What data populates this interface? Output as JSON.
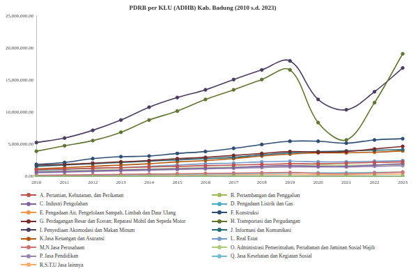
{
  "chart_data": {
    "type": "line",
    "title": "PDRB per KLU (ADHB) Kab. Badung (2010 s.d. 2023)",
    "categories": [
      "2010",
      "2011",
      "2012",
      "2013",
      "2014",
      "2015",
      "2016",
      "2017",
      "2018",
      "2019",
      "2020",
      "2021",
      "2022",
      "2023"
    ],
    "ylim": [
      0,
      25000000
    ],
    "yticks": [
      {
        "value": 0,
        "label": "0.00"
      },
      {
        "value": 5000000,
        "label": "5,000,000.00"
      },
      {
        "value": 10000000,
        "label": "10,000,000.00"
      },
      {
        "value": 15000000,
        "label": "15,000,000.00"
      },
      {
        "value": 20000000,
        "label": "20,000,000.00"
      },
      {
        "value": 25000000,
        "label": "25,000,000.00"
      }
    ],
    "grid": false,
    "legend": "bottom",
    "marker": "circle",
    "series": [
      {
        "name": "A. Pertanian, Kehutanan, dan Perikanan",
        "color": "#c0504d",
        "values": [
          1100000,
          1200000,
          1300000,
          1400000,
          1500000,
          1600000,
          1700000,
          1800000,
          1900000,
          2000000,
          2000000,
          2100000,
          2200000,
          2300000
        ]
      },
      {
        "name": "B. Pertambangan dan Penggalian",
        "color": "#9bbb59",
        "values": [
          10000,
          11000,
          12000,
          13000,
          14000,
          15000,
          16000,
          17000,
          18000,
          19000,
          17000,
          16000,
          18000,
          20000
        ]
      },
      {
        "name": "C. Industri Pengolahan",
        "color": "#8064a2",
        "values": [
          700000,
          800000,
          900000,
          1000000,
          1100000,
          1200000,
          1300000,
          1400000,
          1600000,
          1700000,
          1600000,
          1600000,
          1800000,
          2000000
        ]
      },
      {
        "name": "D. Pengadaan Listrik dan Gas",
        "color": "#4bacc6",
        "values": [
          30000,
          33000,
          36000,
          39000,
          42000,
          45000,
          48000,
          51000,
          54000,
          57000,
          50000,
          48000,
          52000,
          60000
        ]
      },
      {
        "name": "E. Pengadaan Air, Pengelolaan Sampah, Limbah dan Daur Ulang",
        "color": "#f79646",
        "values": [
          20000,
          22000,
          24000,
          26000,
          28000,
          30000,
          32000,
          34000,
          36000,
          38000,
          37000,
          37000,
          39000,
          40000
        ]
      },
      {
        "name": "F. Konstruksi",
        "color": "#2c4d75",
        "values": [
          1900000,
          2200000,
          2800000,
          3100000,
          3200000,
          3600000,
          3900000,
          4400000,
          5000000,
          5500000,
          5500000,
          5200000,
          5700000,
          5900000
        ]
      },
      {
        "name": "G. Perdagangan Besar dan Eceran; Reparasi Mobil dan Sepeda Motor",
        "color": "#772c2a",
        "values": [
          1800000,
          1900000,
          2100000,
          2300000,
          2500000,
          2800000,
          3000000,
          3300000,
          3600000,
          3900000,
          3800000,
          3900000,
          4300000,
          4700000
        ]
      },
      {
        "name": "H. Transportasi dan Pergudangan",
        "color": "#5f7530",
        "values": [
          3950000,
          4800000,
          5600000,
          6900000,
          8800000,
          10200000,
          12000000,
          13500000,
          15100000,
          16600000,
          8400000,
          5700000,
          11500000,
          19100000
        ]
      },
      {
        "name": "I. Penyediaan Akomodasi dan Makan Minum",
        "color": "#4d3b62",
        "values": [
          5300000,
          6000000,
          7200000,
          8800000,
          10800000,
          12300000,
          13500000,
          15100000,
          16600000,
          18000000,
          12000000,
          10400000,
          13200000,
          16900000
        ]
      },
      {
        "name": "J. Informasi dan Komunikasi",
        "color": "#276a7c",
        "values": [
          1600000,
          1800000,
          2000000,
          2200000,
          2400000,
          2600000,
          2800000,
          3000000,
          3400000,
          3700000,
          3900000,
          4000000,
          4100000,
          4200000
        ]
      },
      {
        "name": "K.Jasa Keuangan dan Asuransi",
        "color": "#b65708",
        "values": [
          1200000,
          1400000,
          1600000,
          1800000,
          2000000,
          2300000,
          2500000,
          2800000,
          3200000,
          3500000,
          3700000,
          3700000,
          3800000,
          4000000
        ]
      },
      {
        "name": "L. Real Estat",
        "color": "#729aca",
        "values": [
          1000000,
          1100000,
          1300000,
          1400000,
          1600000,
          1800000,
          2000000,
          2100000,
          2300000,
          2400000,
          2300000,
          2300000,
          2400000,
          2500000
        ]
      },
      {
        "name": "M,N Jasa Perusahaan",
        "color": "#cd7371",
        "values": [
          200000,
          250000,
          300000,
          350000,
          400000,
          450000,
          500000,
          550000,
          600000,
          650000,
          500000,
          450000,
          550000,
          700000
        ]
      },
      {
        "name": "O. Administrasi Pemerintahan, Pertahanan dan Jaminan Sosial Wajib",
        "color": "#afc97a",
        "values": [
          800000,
          900000,
          1000000,
          1100000,
          1200000,
          1300000,
          1400000,
          1500000,
          1600000,
          1700000,
          1800000,
          1800000,
          1800000,
          1900000
        ]
      },
      {
        "name": "P. Jasa Pendidikan",
        "color": "#9983b5",
        "values": [
          600000,
          700000,
          800000,
          900000,
          1000000,
          1100000,
          1200000,
          1300000,
          1400000,
          1500000,
          1500000,
          1500000,
          1600000,
          1700000
        ]
      },
      {
        "name": "Q. Jasa Kesehatan dan Kegiatan Sosial",
        "color": "#6fbdd1",
        "values": [
          200000,
          220000,
          250000,
          280000,
          320000,
          360000,
          400000,
          450000,
          500000,
          550000,
          600000,
          620000,
          650000,
          700000
        ]
      },
      {
        "name": "R,S,T,U Jasa lainnya",
        "color": "#f9ab6b",
        "values": [
          150000,
          170000,
          190000,
          210000,
          230000,
          250000,
          270000,
          290000,
          310000,
          330000,
          300000,
          290000,
          330000,
          400000
        ]
      }
    ]
  }
}
